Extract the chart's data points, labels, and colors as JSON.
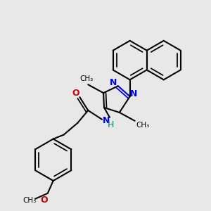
{
  "bg_color": "#e8e8e8",
  "bond_color": "#000000",
  "n_color": "#0000ee",
  "o_color": "#cc0000",
  "h_color": "#008080",
  "line_width": 1.5,
  "fig_size": [
    3.0,
    3.0
  ],
  "dpi": 100,
  "xlim": [
    0,
    300
  ],
  "ylim": [
    0,
    300
  ]
}
